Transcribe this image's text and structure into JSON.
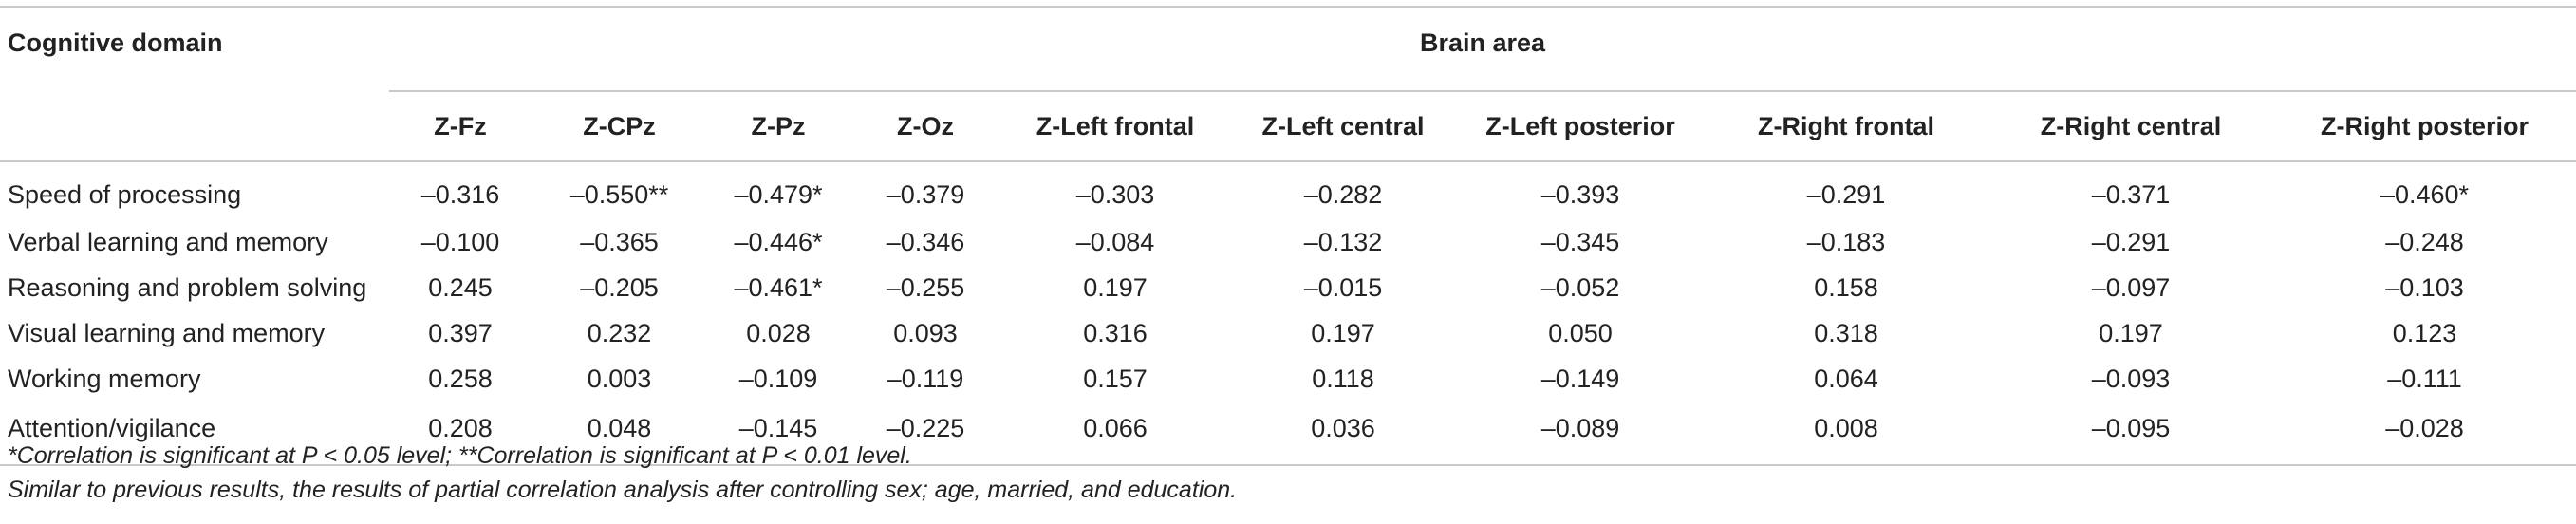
{
  "table": {
    "header": {
      "domain_label": "Cognitive domain",
      "group_label": "Brain area",
      "columns": [
        "Z-Fz",
        "Z-CPz",
        "Z-Pz",
        "Z-Oz",
        "Z-Left frontal",
        "Z-Left central",
        "Z-Left posterior",
        "Z-Right frontal",
        "Z-Right central",
        "Z-Right posterior"
      ]
    },
    "rows": [
      {
        "label": "Speed of processing",
        "values": [
          "–0.316",
          "–0.550**",
          "–0.479*",
          "–0.379",
          "–0.303",
          "–0.282",
          "–0.393",
          "–0.291",
          "–0.371",
          "–0.460*"
        ]
      },
      {
        "label": "Verbal learning and memory",
        "values": [
          "–0.100",
          "–0.365",
          "–0.446*",
          "–0.346",
          "–0.084",
          "–0.132",
          "–0.345",
          "–0.183",
          "–0.291",
          "–0.248"
        ]
      },
      {
        "label": "Reasoning and problem solving",
        "values": [
          "0.245",
          "–0.205",
          "–0.461*",
          "–0.255",
          "0.197",
          "–0.015",
          "–0.052",
          "0.158",
          "–0.097",
          "–0.103"
        ]
      },
      {
        "label": "Visual learning and memory",
        "values": [
          "0.397",
          "0.232",
          "0.028",
          "0.093",
          "0.316",
          "0.197",
          "0.050",
          "0.318",
          "0.197",
          "0.123"
        ]
      },
      {
        "label": "Working memory",
        "values": [
          "0.258",
          "0.003",
          "–0.109",
          "–0.119",
          "0.157",
          "0.118",
          "–0.149",
          "0.064",
          "–0.093",
          "–0.111"
        ]
      },
      {
        "label": "Attention/vigilance",
        "values": [
          "0.208",
          "0.048",
          "–0.145",
          "–0.225",
          "0.066",
          "0.036",
          "–0.089",
          "0.008",
          "–0.095",
          "–0.028"
        ]
      }
    ]
  },
  "notes": [
    "*Correlation is significant at P < 0.05 level; **Correlation is significant at P < 0.01 level.",
    "Similar to previous results, the results of partial correlation analysis after controlling sex; age, married, and education."
  ]
}
